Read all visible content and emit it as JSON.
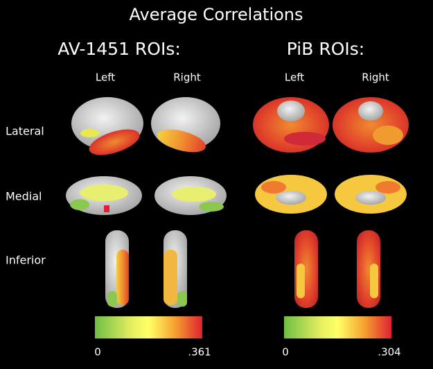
{
  "title": "Average Correlations",
  "rows": [
    "Lateral",
    "Medial",
    "Inferior"
  ],
  "panels": [
    {
      "title": "AV-1451 ROIs:",
      "columns": [
        "Left",
        "Right"
      ],
      "colorbar": {
        "min": "0",
        "max": ".361"
      }
    },
    {
      "title": "PiB ROIs:",
      "columns": [
        "Left",
        "Right"
      ],
      "colorbar": {
        "min": "0",
        "max": ".304"
      }
    }
  ]
}
